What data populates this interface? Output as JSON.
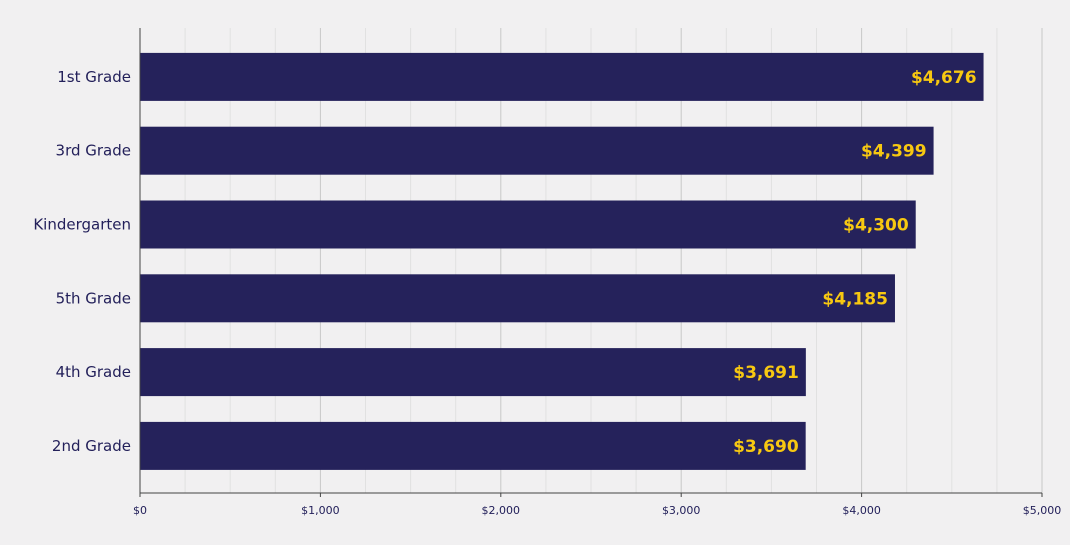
{
  "chart_data": {
    "type": "bar",
    "orientation": "horizontal",
    "categories": [
      "1st Grade",
      "3rd Grade",
      "Kindergarten",
      "5th Grade",
      "4th Grade",
      "2nd Grade"
    ],
    "values": [
      4676,
      4399,
      4300,
      4185,
      3691,
      3690
    ],
    "value_labels": [
      "$4,676",
      "$4,399",
      "$4,300",
      "$4,185",
      "$3,691",
      "$3,690"
    ],
    "x_ticks": [
      "$0",
      "$1,000",
      "$2,000",
      "$3,000",
      "$4,000",
      "$5,000"
    ],
    "xlim": [
      0,
      5000
    ],
    "title": "",
    "xlabel": "",
    "ylabel": "",
    "grid": true,
    "colors": {
      "bar": "#25225b",
      "value_label": "#f7c811",
      "text": "#23205a",
      "background": "#f1f0f1",
      "major_grid": "#c8c8c8",
      "minor_grid": "#e1e1e1",
      "axis": "#444444"
    }
  }
}
